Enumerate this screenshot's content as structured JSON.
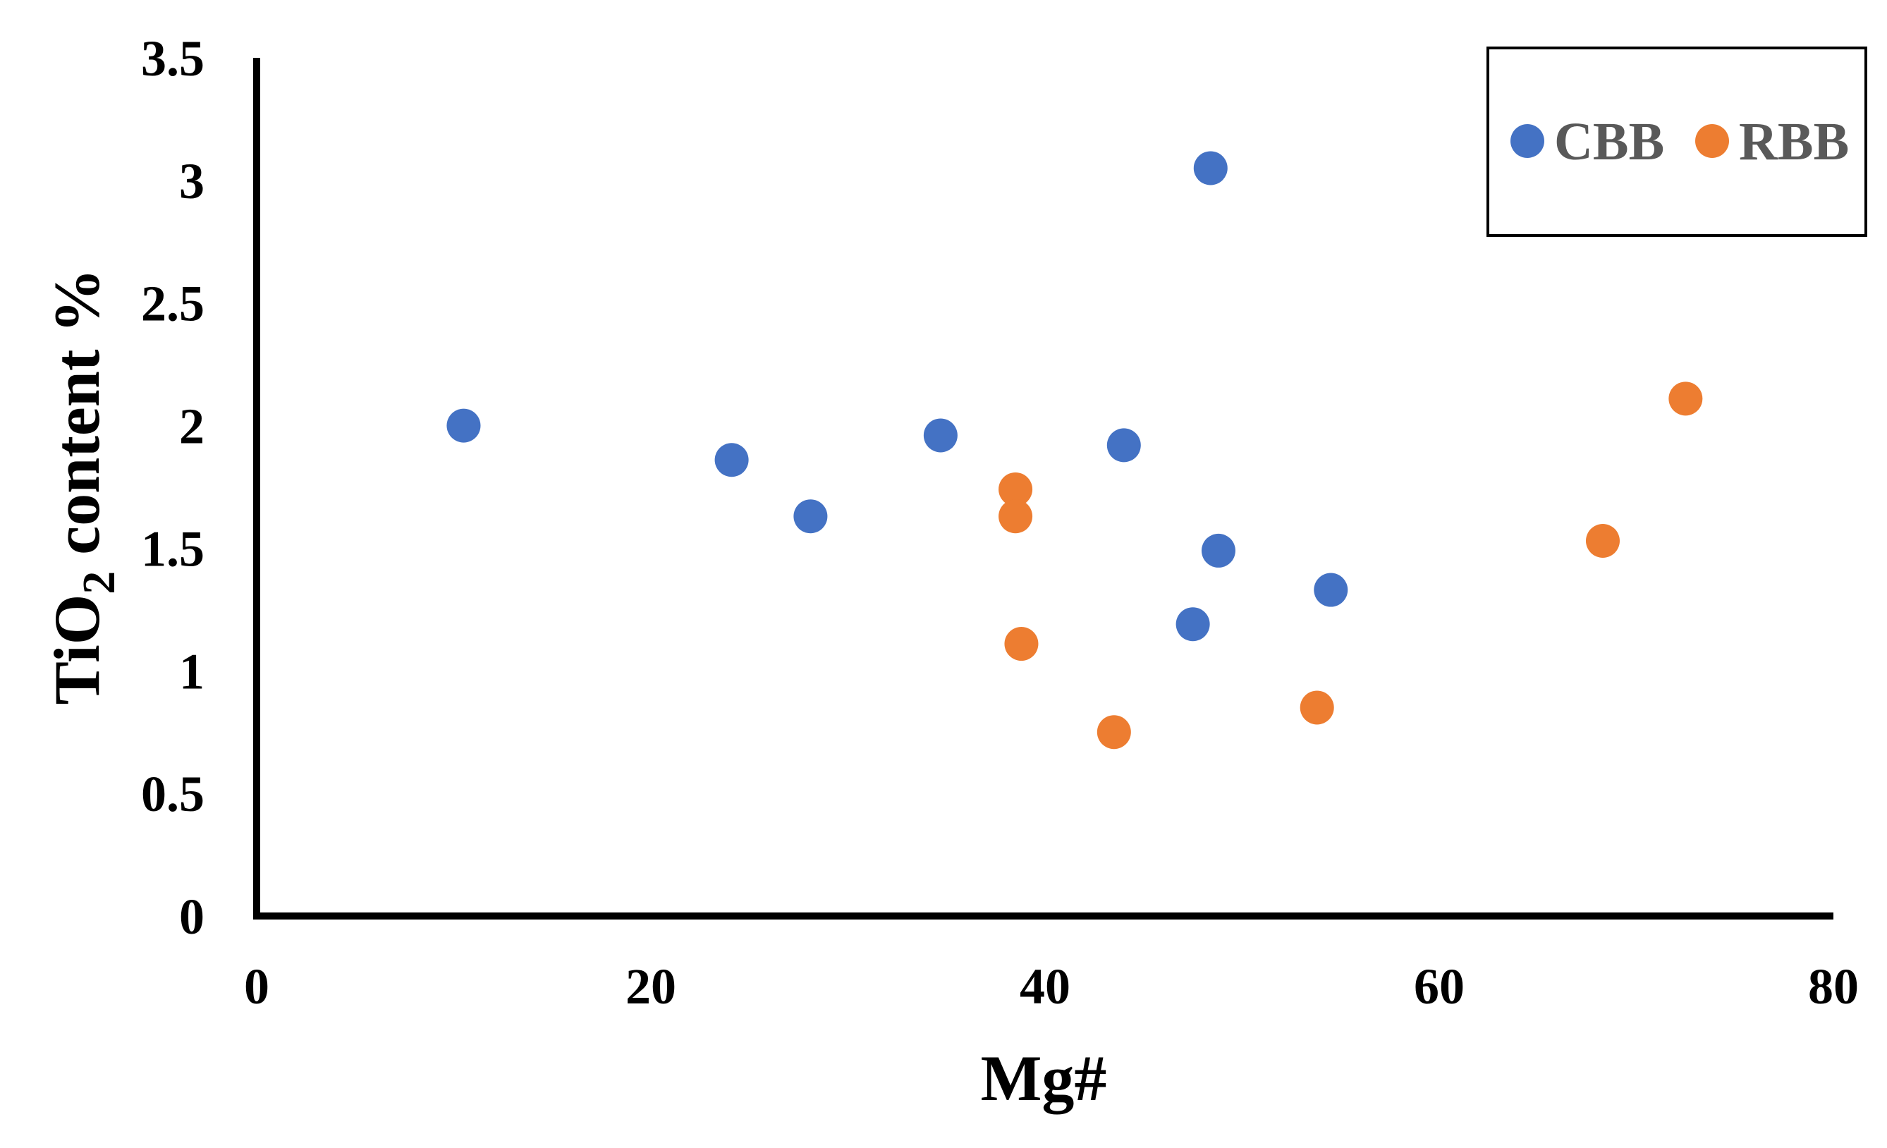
{
  "chart_data": {
    "type": "scatter",
    "xlabel": "Mg#",
    "ylabel": {
      "prefix": "TiO",
      "subscript": "2",
      "suffix": " content  %"
    },
    "xlim": [
      0,
      80
    ],
    "ylim": [
      0,
      3.5
    ],
    "x_ticks": [
      "0",
      "20",
      "40",
      "60",
      "80"
    ],
    "y_ticks": [
      "0",
      "0.5",
      "1",
      "1.5",
      "2",
      "2.5",
      "3",
      "3.5"
    ],
    "x_tick_values": [
      0,
      20,
      40,
      60,
      80
    ],
    "y_tick_values": [
      0,
      0.5,
      1,
      1.5,
      2,
      2.5,
      3,
      3.5
    ],
    "grid": false,
    "legend_position": "top-right",
    "series": [
      {
        "name": "CBB",
        "color": "#4472C4",
        "points": [
          {
            "x": 10.5,
            "y": 2.0
          },
          {
            "x": 24.1,
            "y": 1.86
          },
          {
            "x": 28.1,
            "y": 1.63
          },
          {
            "x": 34.7,
            "y": 1.96
          },
          {
            "x": 44.0,
            "y": 1.92
          },
          {
            "x": 48.4,
            "y": 3.05
          },
          {
            "x": 48.8,
            "y": 1.49
          },
          {
            "x": 47.5,
            "y": 1.19
          },
          {
            "x": 54.5,
            "y": 1.33
          }
        ]
      },
      {
        "name": "RBB",
        "color": "#ED7D31",
        "points": [
          {
            "x": 38.5,
            "y": 1.74
          },
          {
            "x": 38.5,
            "y": 1.63
          },
          {
            "x": 38.8,
            "y": 1.11
          },
          {
            "x": 43.5,
            "y": 0.75
          },
          {
            "x": 53.8,
            "y": 0.85
          },
          {
            "x": 68.3,
            "y": 1.53
          },
          {
            "x": 72.5,
            "y": 2.11
          }
        ]
      }
    ]
  }
}
